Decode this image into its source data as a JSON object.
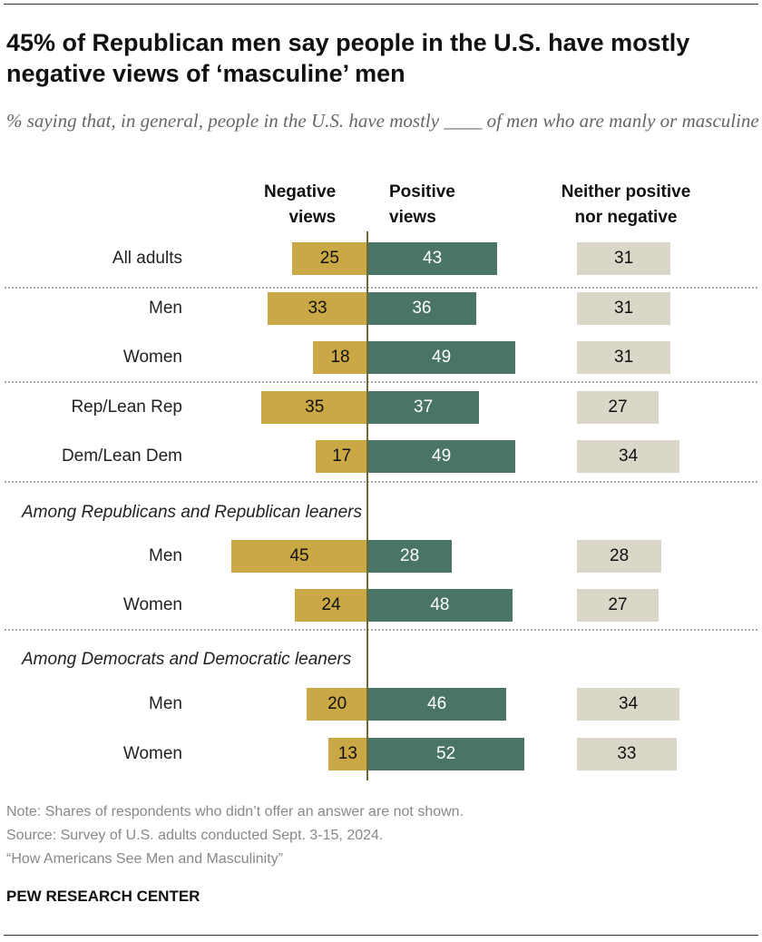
{
  "title": "45% of Republican men say people in the U.S. have mostly negative views of ‘masculine’ men",
  "subtitle": "% saying that, in general, people in the U.S. have mostly ____ of men who are manly or masculine",
  "chart_data": {
    "type": "bar",
    "columns": [
      "Negative views",
      "Positive views",
      "Neither positive nor negative"
    ],
    "colors": {
      "negative": "#C9A845",
      "positive": "#4A7566",
      "neither": "#DAD7C9"
    },
    "sections": [
      {
        "heading": "",
        "rows": [
          {
            "label": "All adults",
            "negative": 25,
            "positive": 43,
            "neither": 31
          }
        ]
      },
      {
        "heading": "",
        "rows": [
          {
            "label": "Men",
            "negative": 33,
            "positive": 36,
            "neither": 31
          },
          {
            "label": "Women",
            "negative": 18,
            "positive": 49,
            "neither": 31
          }
        ]
      },
      {
        "heading": "",
        "rows": [
          {
            "label": "Rep/Lean Rep",
            "negative": 35,
            "positive": 37,
            "neither": 27
          },
          {
            "label": "Dem/Lean Dem",
            "negative": 17,
            "positive": 49,
            "neither": 34
          }
        ]
      },
      {
        "heading": "Among Republicans and Republican leaners",
        "rows": [
          {
            "label": "Men",
            "negative": 45,
            "positive": 28,
            "neither": 28
          },
          {
            "label": "Women",
            "negative": 24,
            "positive": 48,
            "neither": 27
          }
        ]
      },
      {
        "heading": "Among Democrats and Democratic leaners",
        "rows": [
          {
            "label": "Men",
            "negative": 20,
            "positive": 46,
            "neither": 34
          },
          {
            "label": "Women",
            "negative": 13,
            "positive": 52,
            "neither": 33
          }
        ]
      }
    ]
  },
  "headers": {
    "negative": [
      "Negative",
      "views"
    ],
    "positive": [
      "Positive",
      "views"
    ],
    "neither": [
      "Neither positive",
      "nor negative"
    ]
  },
  "notes": [
    "Note: Shares of respondents who didn’t offer an answer are not shown.",
    "Source: Survey of U.S. adults conducted Sept. 3-15, 2024.",
    "“How Americans See Men and Masculinity”"
  ],
  "brand": "PEW RESEARCH CENTER"
}
